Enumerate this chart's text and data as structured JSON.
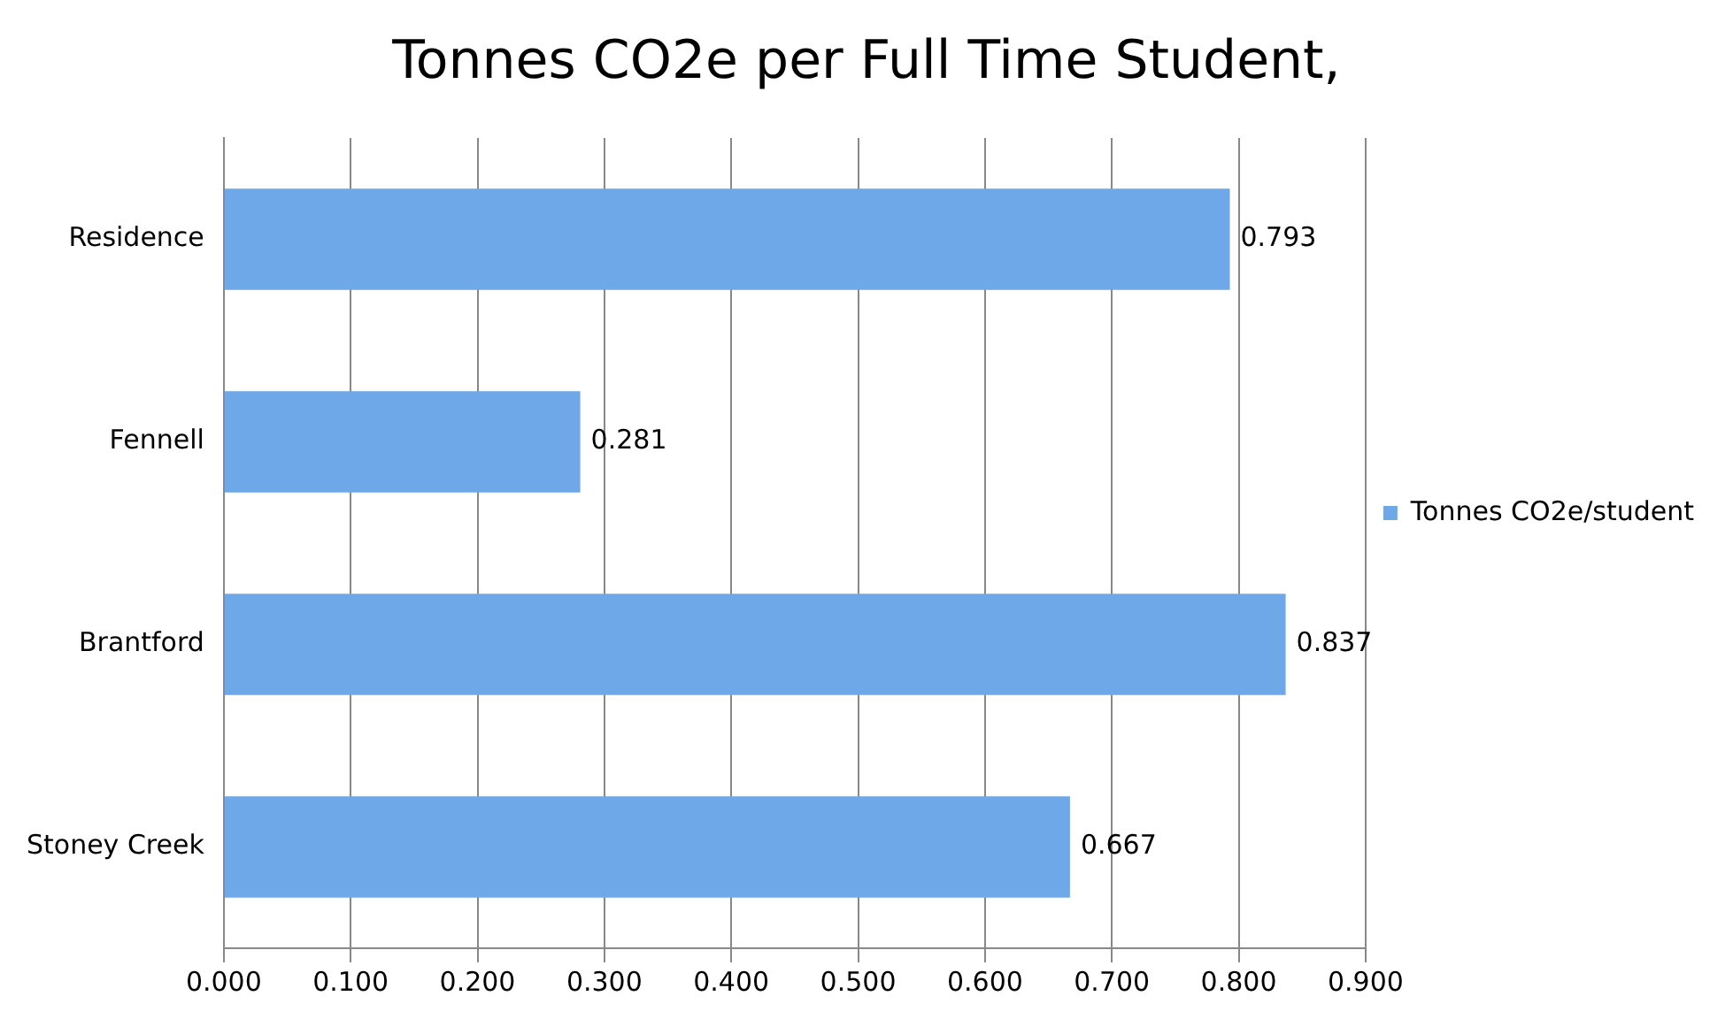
{
  "chart_data": {
    "type": "bar",
    "orientation": "horizontal",
    "title": "Tonnes CO2e per Full Time Student,",
    "categories": [
      "Residence",
      "Fennell",
      "Brantford",
      "Stoney Creek"
    ],
    "series": [
      {
        "name": "Tonnes CO2e/student",
        "color": "#6fa8e8",
        "values": [
          0.793,
          0.281,
          0.837,
          0.667
        ]
      }
    ],
    "xlim": [
      0,
      0.9
    ],
    "xticks": [
      {
        "value": 0,
        "label": "0.000"
      },
      {
        "value": 0.1,
        "label": "0.100"
      },
      {
        "value": 0.2,
        "label": "0.200"
      },
      {
        "value": 0.3,
        "label": "0.300"
      },
      {
        "value": 0.4,
        "label": "0.400"
      },
      {
        "value": 0.5,
        "label": "0.500"
      },
      {
        "value": 0.6,
        "label": "0.600"
      },
      {
        "value": 0.7,
        "label": "0.700"
      },
      {
        "value": 0.8,
        "label": "0.800"
      },
      {
        "value": 0.9,
        "label": "0.900"
      }
    ],
    "grid": "x",
    "legend": "right",
    "data_labels": true
  }
}
